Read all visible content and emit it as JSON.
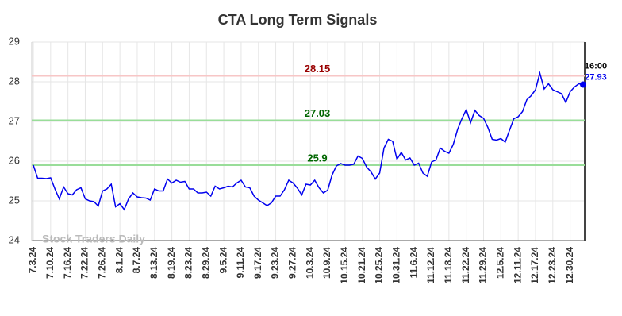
{
  "chart_data": {
    "type": "line",
    "title": "CTA Long Term Signals",
    "watermark": "Stock Traders Daily",
    "last_time": "16:00",
    "categories": [
      "7.3.24",
      null,
      null,
      null,
      "7.10.24",
      null,
      null,
      null,
      "7.16.24",
      null,
      null,
      null,
      "7.22.24",
      null,
      null,
      null,
      "7.26.24",
      null,
      null,
      null,
      "8.1.24",
      null,
      null,
      null,
      "8.7.24",
      null,
      null,
      null,
      "8.13.24",
      null,
      null,
      null,
      "8.19.24",
      null,
      null,
      null,
      "8.23.24",
      null,
      null,
      null,
      "8.29.24",
      null,
      null,
      null,
      "9.5.24",
      null,
      null,
      null,
      "9.11.24",
      null,
      null,
      null,
      "9.17.24",
      null,
      null,
      null,
      "9.23.24",
      null,
      null,
      null,
      "9.27.24",
      null,
      null,
      null,
      "10.3.24",
      null,
      null,
      null,
      "10.9.24",
      null,
      null,
      null,
      "10.15.24",
      null,
      null,
      null,
      "10.21.24",
      null,
      null,
      null,
      "10.25.24",
      null,
      null,
      null,
      "10.31.24",
      null,
      null,
      null,
      "11.6.24",
      null,
      null,
      null,
      "11.12.24",
      null,
      null,
      null,
      "11.18.24",
      null,
      null,
      null,
      "11.22.24",
      null,
      null,
      null,
      "11.29.24",
      null,
      null,
      null,
      "12.5.24",
      null,
      null,
      null,
      "12.11.24",
      null,
      null,
      null,
      "12.17.24",
      null,
      null,
      null,
      "12.23.24",
      null,
      null,
      null,
      "12.30.24",
      null,
      null,
      null
    ],
    "series": [
      {
        "color": "#0000ee",
        "values": [
          25.9,
          25.57,
          25.57,
          25.56,
          25.58,
          25.3,
          25.05,
          25.35,
          25.18,
          25.15,
          25.28,
          25.33,
          25.05,
          25.0,
          24.98,
          24.87,
          25.25,
          25.3,
          25.42,
          24.85,
          24.93,
          24.78,
          25.05,
          25.2,
          25.1,
          25.08,
          25.07,
          25.02,
          25.3,
          25.25,
          25.25,
          25.55,
          25.45,
          25.52,
          25.47,
          25.49,
          25.3,
          25.3,
          25.2,
          25.2,
          25.22,
          25.12,
          25.37,
          25.3,
          25.33,
          25.37,
          25.35,
          25.45,
          25.52,
          25.35,
          25.33,
          25.12,
          25.02,
          24.95,
          24.88,
          24.95,
          25.12,
          25.12,
          25.28,
          25.52,
          25.45,
          25.32,
          25.15,
          25.42,
          25.4,
          25.52,
          25.33,
          25.2,
          25.27,
          25.65,
          25.88,
          25.94,
          25.9,
          25.9,
          25.92,
          26.13,
          26.07,
          25.85,
          25.73,
          25.55,
          25.7,
          26.33,
          26.55,
          26.5,
          26.05,
          26.22,
          26.03,
          26.08,
          25.9,
          25.95,
          25.7,
          25.62,
          25.98,
          26.03,
          26.33,
          26.25,
          26.2,
          26.42,
          26.8,
          27.07,
          27.3,
          26.97,
          27.28,
          27.15,
          27.08,
          26.85,
          26.55,
          26.53,
          26.57,
          26.48,
          26.78,
          27.07,
          27.12,
          27.25,
          27.55,
          27.65,
          27.8,
          28.22,
          27.82,
          27.95,
          27.8,
          27.75,
          27.7,
          27.48,
          27.75,
          27.87,
          27.95,
          27.93
        ]
      }
    ],
    "hlines": [
      {
        "value": 28.15,
        "color": "#f7c6c6",
        "label_color": "#990000"
      },
      {
        "value": 27.03,
        "color": "#99dd99",
        "label_color": "#006600"
      },
      {
        "value": 25.9,
        "color": "#99dd99",
        "label_color": "#006600"
      }
    ],
    "ylim": [
      24,
      29
    ],
    "yticks": [
      24,
      25,
      26,
      27,
      28,
      29
    ],
    "grid": true
  }
}
